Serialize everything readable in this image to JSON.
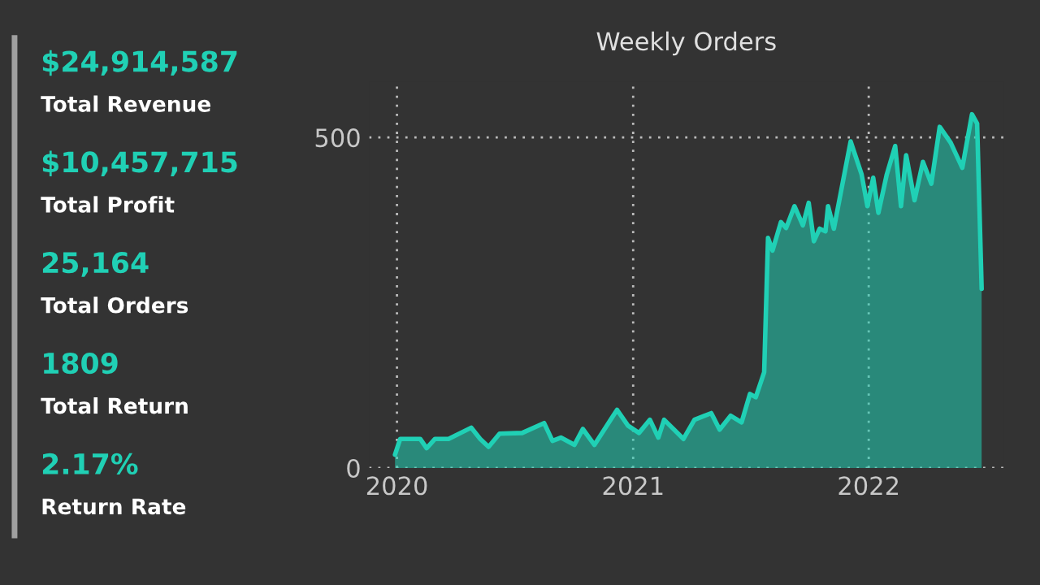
{
  "chart_data": [
    {
      "type": "other",
      "annotations": [
        "$24,914,587",
        "Total Revenue",
        "$10,457,715",
        "Total Profit",
        "25,164",
        "Total Orders",
        "1809",
        "Total Return",
        "2.17%",
        "Return Rate"
      ]
    },
    {
      "type": "area",
      "title": "Weekly Orders",
      "x": [
        "2019-12-29",
        "2020-01-06",
        "2020-01-17",
        "2020-02-06",
        "2020-02-16",
        "2020-02-29",
        "2020-03-21",
        "2020-04-25",
        "2020-05-09",
        "2020-05-22",
        "2020-06-08",
        "2020-07-13",
        "2020-08-16",
        "2020-08-29",
        "2020-09-11",
        "2020-10-02",
        "2020-10-15",
        "2020-11-02",
        "2020-12-07",
        "2020-12-24",
        "2021-01-10",
        "2021-01-27",
        "2021-02-09",
        "2021-02-18",
        "2021-03-20",
        "2021-04-06",
        "2021-05-02",
        "2021-05-15",
        "2021-06-01",
        "2021-06-18",
        "2021-07-01",
        "2021-07-10",
        "2021-07-23",
        "2021-07-29",
        "2021-08-05",
        "2021-08-18",
        "2021-08-26",
        "2021-09-08",
        "2021-09-21",
        "2021-09-30",
        "2021-10-08",
        "2021-10-17",
        "2021-10-26",
        "2021-10-30",
        "2021-11-08",
        "2021-12-04",
        "2021-12-21",
        "2021-12-30",
        "2022-01-08",
        "2022-01-16",
        "2022-01-29",
        "2022-02-11",
        "2022-02-20",
        "2022-02-28",
        "2022-03-13",
        "2022-03-26",
        "2022-04-08",
        "2022-04-21",
        "2022-05-08",
        "2022-05-26",
        "2022-06-10",
        "2022-06-18",
        "2022-06-25"
      ],
      "series": [
        {
          "color": "#20d0b5",
          "values": [
            20,
            44,
            44,
            44,
            30,
            44,
            44,
            61,
            44,
            32,
            52,
            53,
            68,
            41,
            46,
            35,
            59,
            35,
            88,
            64,
            53,
            73,
            46,
            73,
            44,
            73,
            83,
            58,
            79,
            69,
            112,
            107,
            145,
            348,
            329,
            372,
            363,
            396,
            367,
            401,
            343,
            362,
            358,
            396,
            362,
            494,
            444,
            396,
            439,
            386,
            444,
            487,
            396,
            473,
            405,
            463,
            430,
            516,
            492,
            454,
            535,
            521,
            271
          ]
        }
      ],
      "xlim": [
        "2019-11-19",
        "2022-07-29"
      ],
      "xticks": [
        {
          "value": "2020-01-01",
          "label": "2020"
        },
        {
          "value": "2021-01-01",
          "label": "2021"
        },
        {
          "value": "2022-01-01",
          "label": "2022"
        }
      ],
      "ylim": [
        0,
        584
      ],
      "yticks": [
        0,
        500
      ],
      "grid": true
    }
  ]
}
